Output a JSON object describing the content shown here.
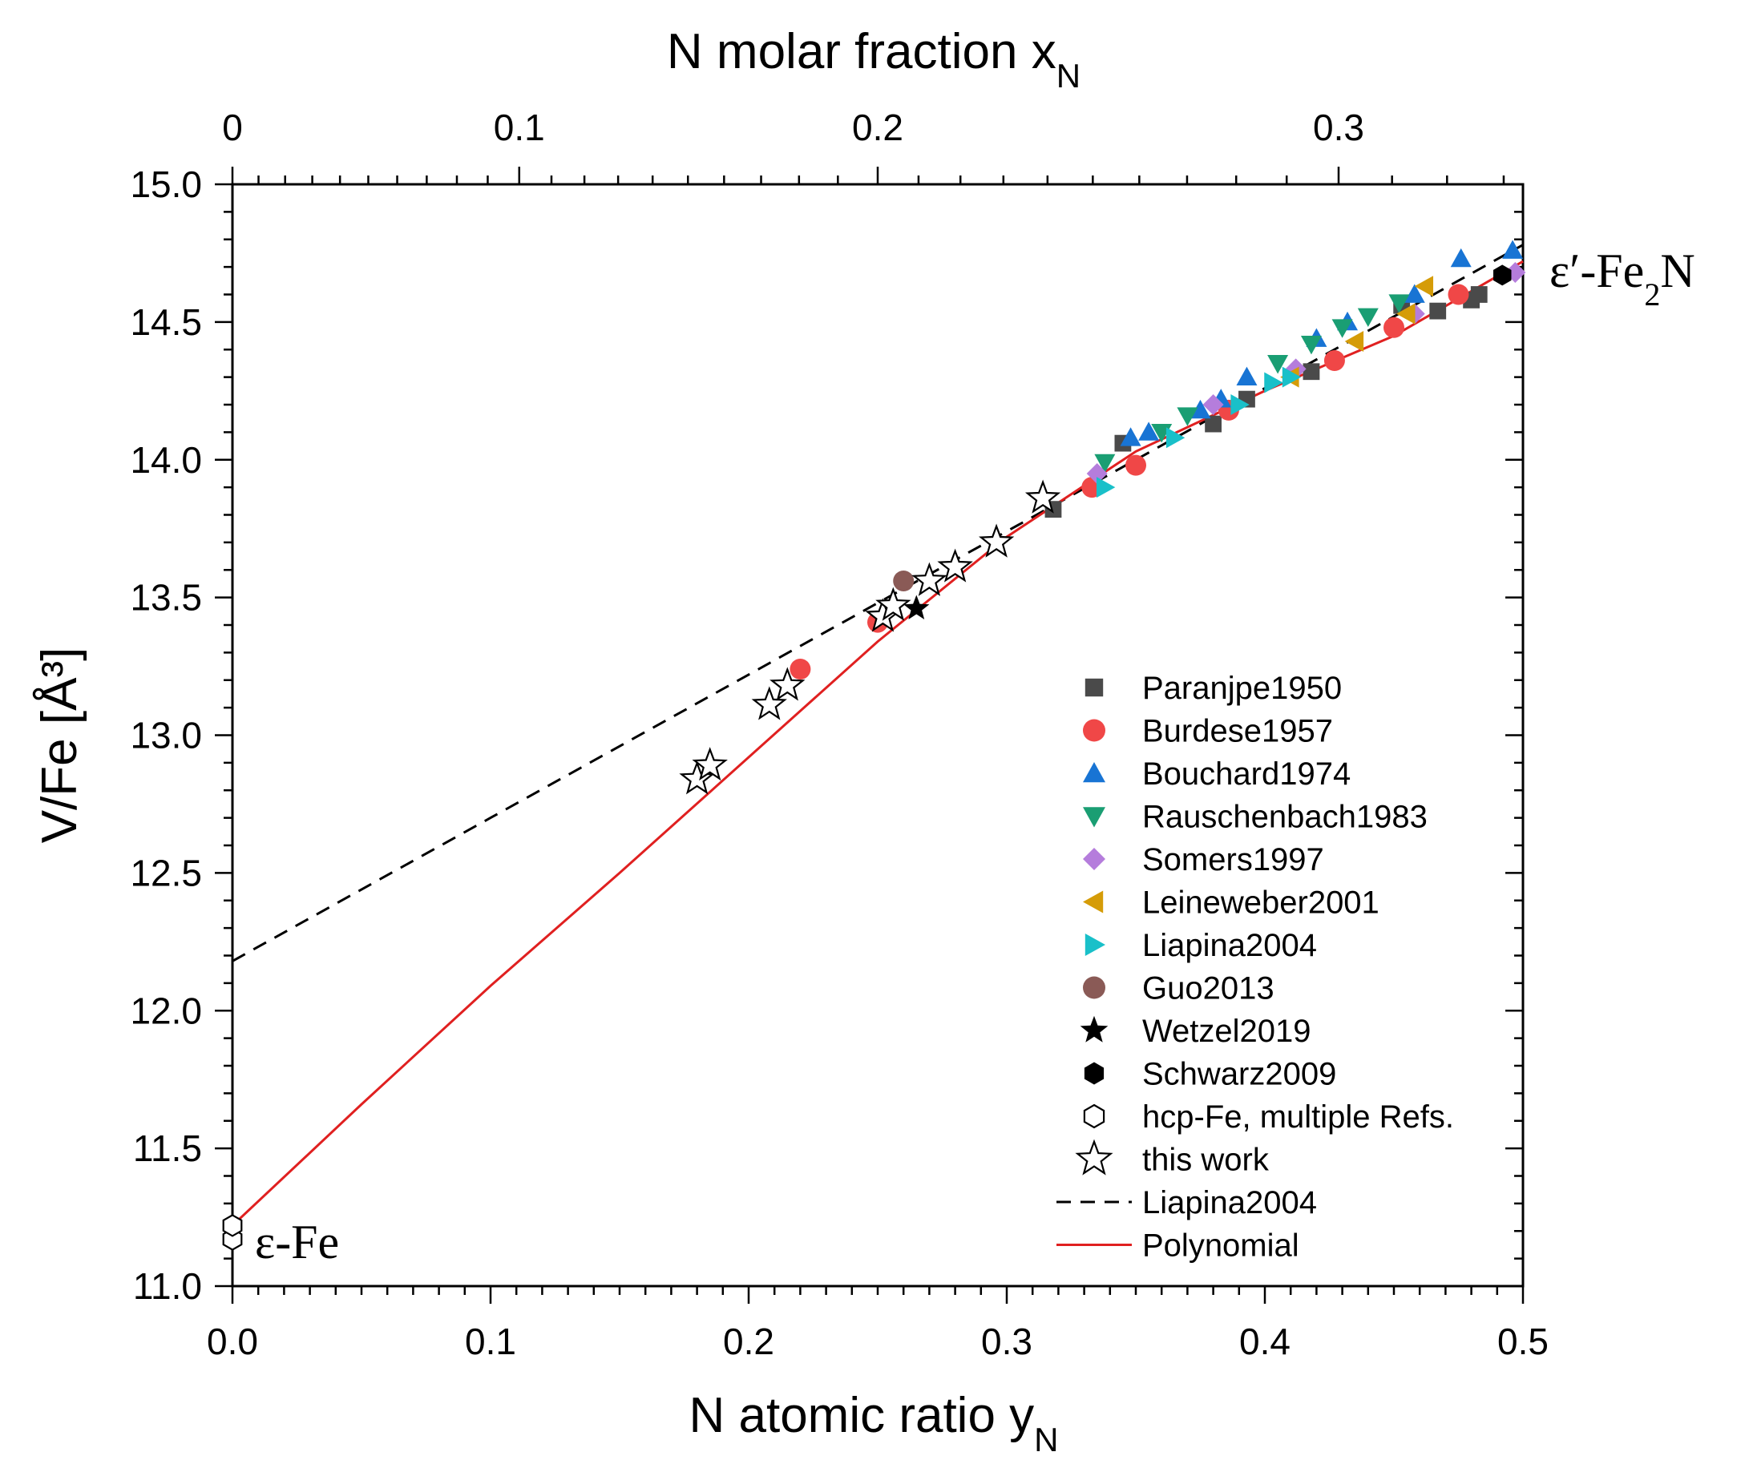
{
  "chart_data": {
    "type": "scatter",
    "title": "",
    "xlabel": "N atomic ratio y",
    "xlabel_sub": "N",
    "x2label": "N molar fraction x",
    "x2label_sub": "N",
    "ylabel": "V/Fe [Å³]",
    "xlim": [
      0,
      0.5
    ],
    "ylim": [
      11.0,
      15.0
    ],
    "grid": false,
    "legend_position": "bottom-right",
    "x_ticks": [
      "0.0",
      "0.1",
      "0.2",
      "0.3",
      "0.4",
      "0.5"
    ],
    "y_ticks": [
      "11.0",
      "11.5",
      "12.0",
      "12.5",
      "13.0",
      "13.5",
      "14.0",
      "14.5",
      "15.0"
    ],
    "x2_ticks": [
      {
        "label": "0",
        "x_N": 0
      },
      {
        "label": "0.1",
        "x_N": 0.1
      },
      {
        "label": "0.2",
        "x_N": 0.2
      },
      {
        "label": "0.3",
        "x_N": 0.3
      }
    ],
    "annotations": {
      "left": "ε-Fe",
      "right_main": "ε′-Fe",
      "right_sub": "2",
      "right_tail": "N"
    },
    "series": [
      {
        "name": "Paranjpe1950",
        "marker": "square",
        "color": "#4a4a4a",
        "points": [
          [
            0.318,
            13.82
          ],
          [
            0.345,
            14.06
          ],
          [
            0.38,
            14.13
          ],
          [
            0.393,
            14.22
          ],
          [
            0.418,
            14.32
          ],
          [
            0.453,
            14.56
          ],
          [
            0.467,
            14.54
          ],
          [
            0.48,
            14.58
          ],
          [
            0.483,
            14.6
          ]
        ]
      },
      {
        "name": "Burdese1957",
        "marker": "circle",
        "color": "#f04747",
        "points": [
          [
            0.22,
            13.24
          ],
          [
            0.25,
            13.41
          ],
          [
            0.333,
            13.9
          ],
          [
            0.35,
            13.98
          ],
          [
            0.386,
            14.18
          ],
          [
            0.427,
            14.36
          ],
          [
            0.45,
            14.48
          ],
          [
            0.475,
            14.6
          ]
        ]
      },
      {
        "name": "Bouchard1974",
        "marker": "triangle-up",
        "color": "#1874d4",
        "points": [
          [
            0.348,
            14.08
          ],
          [
            0.355,
            14.1
          ],
          [
            0.375,
            14.18
          ],
          [
            0.383,
            14.22
          ],
          [
            0.393,
            14.3
          ],
          [
            0.42,
            14.44
          ],
          [
            0.432,
            14.5
          ],
          [
            0.458,
            14.6
          ],
          [
            0.476,
            14.73
          ],
          [
            0.496,
            14.76
          ]
        ]
      },
      {
        "name": "Rauschenbach1983",
        "marker": "triangle-down",
        "color": "#1a9e73",
        "points": [
          [
            0.338,
            13.99
          ],
          [
            0.36,
            14.1
          ],
          [
            0.37,
            14.16
          ],
          [
            0.405,
            14.35
          ],
          [
            0.418,
            14.42
          ],
          [
            0.43,
            14.48
          ],
          [
            0.44,
            14.52
          ],
          [
            0.452,
            14.57
          ]
        ]
      },
      {
        "name": "Somers1997",
        "marker": "diamond",
        "color": "#b57ddc",
        "points": [
          [
            0.335,
            13.95
          ],
          [
            0.38,
            14.2
          ],
          [
            0.412,
            14.33
          ],
          [
            0.458,
            14.53
          ],
          [
            0.497,
            14.68
          ]
        ]
      },
      {
        "name": "Leineweber2001",
        "marker": "triangle-left",
        "color": "#d59c08",
        "points": [
          [
            0.41,
            14.3
          ],
          [
            0.435,
            14.43
          ],
          [
            0.455,
            14.53
          ],
          [
            0.462,
            14.63
          ]
        ]
      },
      {
        "name": "Liapina2004",
        "marker": "triangle-right",
        "color": "#19c0c9",
        "points": [
          [
            0.338,
            13.9
          ],
          [
            0.365,
            14.08
          ],
          [
            0.39,
            14.2
          ],
          [
            0.403,
            14.28
          ],
          [
            0.41,
            14.3
          ]
        ]
      },
      {
        "name": "Guo2013",
        "marker": "circle",
        "color": "#8a5a56",
        "points": [
          [
            0.26,
            13.56
          ]
        ]
      },
      {
        "name": "Wetzel2019",
        "marker": "star-filled",
        "color": "#000000",
        "points": [
          [
            0.265,
            13.46
          ]
        ]
      },
      {
        "name": "Schwarz2009",
        "marker": "hexagon-filled",
        "color": "#000000",
        "points": [
          [
            0.492,
            14.67
          ]
        ]
      },
      {
        "name": "hcp-Fe, multiple Refs.",
        "marker": "hexagon-open",
        "color": "#000000",
        "points": [
          [
            0.0,
            11.17
          ],
          [
            0.0,
            11.22
          ]
        ]
      },
      {
        "name": "this work",
        "marker": "star-open",
        "color": "#000000",
        "points": [
          [
            0.18,
            12.84
          ],
          [
            0.185,
            12.89
          ],
          [
            0.208,
            13.11
          ],
          [
            0.215,
            13.18
          ],
          [
            0.252,
            13.43
          ],
          [
            0.256,
            13.47
          ],
          [
            0.27,
            13.56
          ],
          [
            0.28,
            13.61
          ],
          [
            0.296,
            13.7
          ],
          [
            0.314,
            13.86
          ]
        ]
      }
    ],
    "lines": [
      {
        "name": "Liapina2004",
        "style": "dashed",
        "color": "#000000",
        "points": [
          [
            0,
            12.18
          ],
          [
            0.1,
            12.7
          ],
          [
            0.2,
            13.22
          ],
          [
            0.3,
            13.74
          ],
          [
            0.4,
            14.26
          ],
          [
            0.5,
            14.78
          ]
        ]
      },
      {
        "name": "Polynomial",
        "style": "solid",
        "color": "#e02020",
        "points": [
          [
            0,
            11.22
          ],
          [
            0.05,
            11.66
          ],
          [
            0.1,
            12.09
          ],
          [
            0.15,
            12.5
          ],
          [
            0.2,
            12.92
          ],
          [
            0.25,
            13.34
          ],
          [
            0.3,
            13.72
          ],
          [
            0.35,
            14.03
          ],
          [
            0.4,
            14.25
          ],
          [
            0.45,
            14.45
          ],
          [
            0.5,
            14.72
          ]
        ]
      }
    ]
  }
}
